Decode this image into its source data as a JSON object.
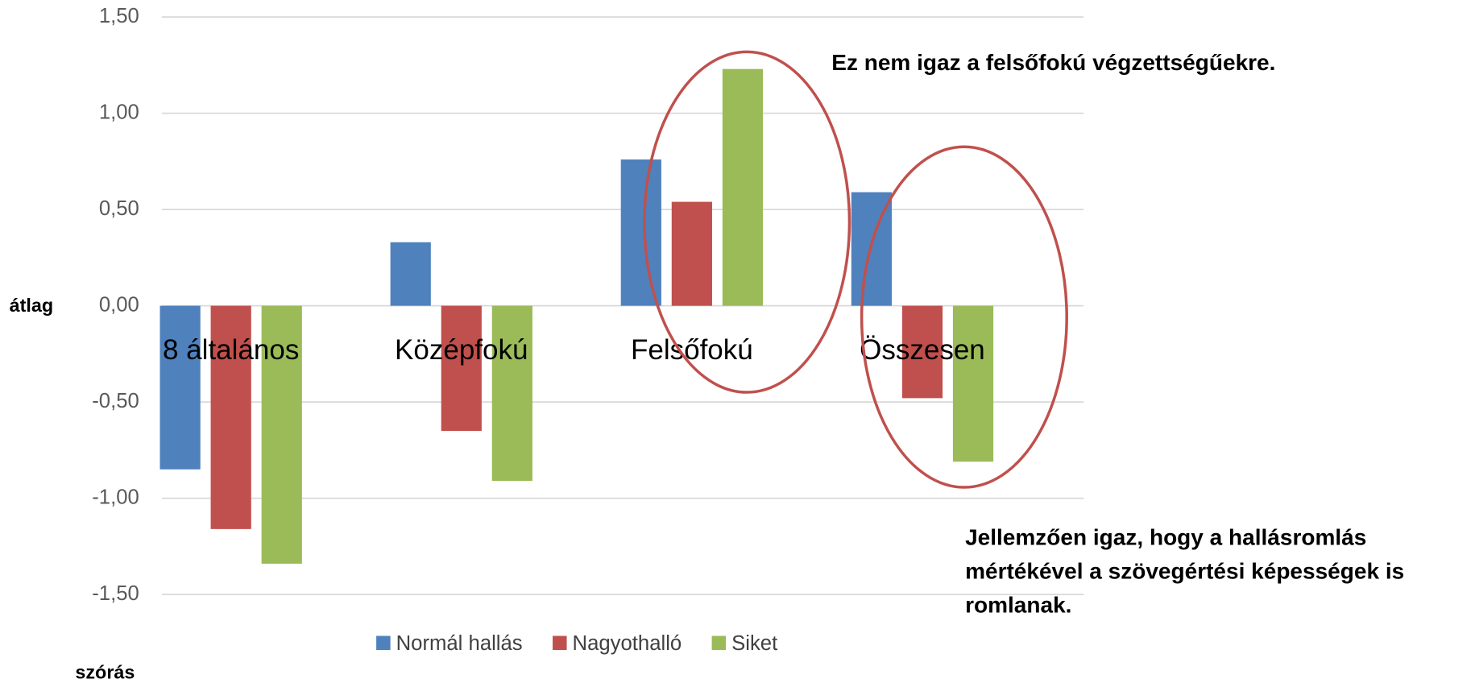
{
  "chart_data": {
    "type": "bar",
    "categories": [
      "8 általános",
      "Középfokú",
      "Felsőfokú",
      "Összesen"
    ],
    "series": [
      {
        "name": "Normál hallás",
        "color": "#4f81bd",
        "values": [
          -0.85,
          0.33,
          0.76,
          0.59
        ]
      },
      {
        "name": "Nagyothalló",
        "color": "#c0504d",
        "values": [
          -1.16,
          -0.65,
          0.54,
          -0.48
        ]
      },
      {
        "name": "Siket",
        "color": "#9bbb59",
        "values": [
          -1.34,
          -0.91,
          1.23,
          -0.81
        ]
      }
    ],
    "ylim": [
      -1.5,
      1.5
    ],
    "yticks": [
      {
        "value": -1.5,
        "label": "-1,50"
      },
      {
        "value": -1,
        "label": "-1,00"
      },
      {
        "value": -0.5,
        "label": "-0,50"
      },
      {
        "value": 0,
        "label": "0,00"
      },
      {
        "value": 0.5,
        "label": "0,50"
      },
      {
        "value": 1,
        "label": "1,00"
      },
      {
        "value": 1.5,
        "label": "1,50"
      }
    ],
    "grid": true,
    "ylabel": "átlag",
    "xlabel": "szórás",
    "annotations": [
      "Ez nem igaz a felsőfokú végzettségűekre.",
      "Jellemzően igaz, hogy a hallásromlás",
      "mértékével a szövegértési képességek is",
      "romlanak."
    ]
  }
}
